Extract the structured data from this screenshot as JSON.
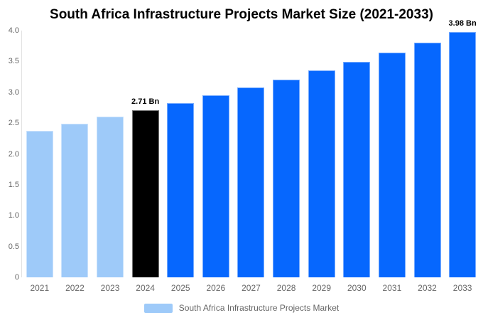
{
  "title": "South Africa Infrastructure Projects Market Size (2021-2033)",
  "colors": {
    "background": "#ffffff",
    "title_text": "#000000",
    "axis_line": "#e2e2e2",
    "tick_label_text": "#666666",
    "value_label_text": "#000000",
    "legend_text": "#666666",
    "palette": {
      "past": "#9ecaf9",
      "current": "#000000",
      "forecast": "#0667fe"
    }
  },
  "chart_data": {
    "type": "bar",
    "title": "South Africa Infrastructure Projects Market Size (2021-2033)",
    "xlabel": "",
    "ylabel": "",
    "categories": [
      "2021",
      "2022",
      "2023",
      "2024",
      "2025",
      "2026",
      "2027",
      "2028",
      "2029",
      "2030",
      "2031",
      "2032",
      "2033"
    ],
    "values": [
      2.38,
      2.49,
      2.6,
      2.71,
      2.83,
      2.95,
      3.08,
      3.21,
      3.35,
      3.49,
      3.64,
      3.8,
      3.98
    ],
    "unit": "Bn",
    "bar_color_keys": [
      "past",
      "past",
      "past",
      "current",
      "forecast",
      "forecast",
      "forecast",
      "forecast",
      "forecast",
      "forecast",
      "forecast",
      "forecast",
      "forecast"
    ],
    "annotations": [
      {
        "category": "2024",
        "text": "2.71 Bn"
      },
      {
        "category": "2033",
        "text": "3.98 Bn"
      }
    ],
    "ylim": [
      0,
      4.0
    ],
    "yticks": [
      0,
      0.5,
      1.0,
      1.5,
      2.0,
      2.5,
      3.0,
      3.5,
      4.0
    ],
    "ytick_labels": [
      "0",
      "0.5",
      "1.0",
      "1.5",
      "2.0",
      "2.5",
      "3.0",
      "3.5",
      "4.0"
    ],
    "grid": false,
    "legend": {
      "position": "bottom",
      "items": [
        {
          "label": "South Africa Infrastructure Projects Market",
          "swatch_color": "#9ecaf9"
        }
      ]
    }
  }
}
